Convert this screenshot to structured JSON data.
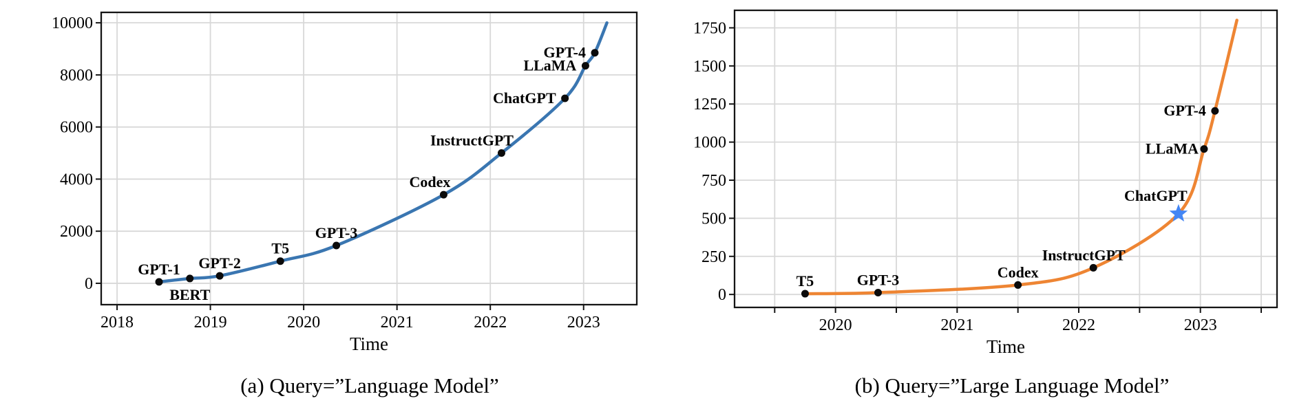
{
  "figure": {
    "xlabel": "Time",
    "grid_color": "#d8d8d8",
    "spine_color": "#151515",
    "text_color": "#000000"
  },
  "chart_data": [
    {
      "id": "a",
      "type": "line",
      "caption": "(a) Query=”Language Model”",
      "xlabel": "Time",
      "line_color": "#3a76b1",
      "marker_color": "#0b0b0b",
      "grid": true,
      "legend": "none",
      "xlim": [
        2017.83,
        2023.57
      ],
      "ylim": [
        -820,
        10400
      ],
      "x_ticks": [
        {
          "v": 2018,
          "label": "2018"
        },
        {
          "v": 2019,
          "label": "2019"
        },
        {
          "v": 2020,
          "label": "2020"
        },
        {
          "v": 2021,
          "label": "2021"
        },
        {
          "v": 2022,
          "label": "2022"
        },
        {
          "v": 2023,
          "label": "2023"
        }
      ],
      "y_ticks": [
        {
          "v": 0,
          "label": "0"
        },
        {
          "v": 2000,
          "label": "2000"
        },
        {
          "v": 4000,
          "label": "4000"
        },
        {
          "v": 6000,
          "label": "6000"
        },
        {
          "v": 8000,
          "label": "8000"
        },
        {
          "v": 10000,
          "label": "10000"
        }
      ],
      "points": [
        {
          "label": "GPT-1",
          "x": 2018.45,
          "y": 55,
          "marker": "dot",
          "label_side": "above"
        },
        {
          "label": "BERT",
          "x": 2018.78,
          "y": 185,
          "marker": "dot",
          "label_side": "below"
        },
        {
          "label": "GPT-2",
          "x": 2019.1,
          "y": 285,
          "marker": "dot",
          "label_side": "above"
        },
        {
          "label": "T5",
          "x": 2019.75,
          "y": 850,
          "marker": "dot",
          "label_side": "above"
        },
        {
          "label": "GPT-3",
          "x": 2020.35,
          "y": 1450,
          "marker": "dot",
          "label_side": "above"
        },
        {
          "label": "Codex",
          "x": 2021.5,
          "y": 3400,
          "marker": "dot",
          "label_side": "above",
          "label_dx": -20
        },
        {
          "label": "InstructGPT",
          "x": 2022.12,
          "y": 5000,
          "marker": "dot",
          "label_side": "above",
          "label_dx": -43
        },
        {
          "label": "ChatGPT",
          "x": 2022.8,
          "y": 7100,
          "marker": "dot",
          "label_side": "left"
        },
        {
          "label": "LLaMA",
          "x": 2023.02,
          "y": 8350,
          "marker": "dot",
          "label_side": "left"
        },
        {
          "label": "GPT-4",
          "x": 2023.12,
          "y": 8850,
          "marker": "dot",
          "label_side": "left"
        }
      ],
      "curve_end": {
        "x": 2023.25,
        "y": 10000
      }
    },
    {
      "id": "b",
      "type": "line",
      "caption": "(b) Query=”Large Language Model”",
      "xlabel": "Time",
      "line_color": "#ee8533",
      "marker_color": "#0b0b0b",
      "star_color": "#4486f4",
      "grid": true,
      "legend": "none",
      "xlim": [
        2019.17,
        2023.63
      ],
      "ylim": [
        -85,
        1865
      ],
      "x_ticks": [
        {
          "v": 2019.5,
          "label": ""
        },
        {
          "v": 2020,
          "label": "2020"
        },
        {
          "v": 2020.5,
          "label": ""
        },
        {
          "v": 2021,
          "label": "2021"
        },
        {
          "v": 2021.5,
          "label": ""
        },
        {
          "v": 2022,
          "label": "2022"
        },
        {
          "v": 2022.5,
          "label": ""
        },
        {
          "v": 2023,
          "label": "2023"
        },
        {
          "v": 2023.5,
          "label": ""
        }
      ],
      "y_ticks": [
        {
          "v": 0,
          "label": "0"
        },
        {
          "v": 250,
          "label": "250"
        },
        {
          "v": 500,
          "label": "500"
        },
        {
          "v": 750,
          "label": "750"
        },
        {
          "v": 1000,
          "label": "1000"
        },
        {
          "v": 1250,
          "label": "1250"
        },
        {
          "v": 1500,
          "label": "1500"
        },
        {
          "v": 1750,
          "label": "1750"
        }
      ],
      "points": [
        {
          "label": "T5",
          "x": 2019.75,
          "y": 5,
          "marker": "dot",
          "label_side": "above"
        },
        {
          "label": "GPT-3",
          "x": 2020.35,
          "y": 12,
          "marker": "dot",
          "label_side": "above"
        },
        {
          "label": "Codex",
          "x": 2021.5,
          "y": 62,
          "marker": "dot",
          "label_side": "above"
        },
        {
          "label": "InstructGPT",
          "x": 2022.12,
          "y": 175,
          "marker": "dot",
          "label_side": "above",
          "label_dx": -14
        },
        {
          "label": "ChatGPT",
          "x": 2022.82,
          "y": 530,
          "marker": "star",
          "label_side": "above",
          "label_dx": -33,
          "label_dy": -8
        },
        {
          "label": "LLaMA",
          "x": 2023.03,
          "y": 955,
          "marker": "dot",
          "label_side": "left",
          "label_dx": 5
        },
        {
          "label": "GPT-4",
          "x": 2023.12,
          "y": 1205,
          "marker": "dot",
          "label_side": "left"
        }
      ],
      "curve_end": {
        "x": 2023.3,
        "y": 1800
      }
    }
  ]
}
